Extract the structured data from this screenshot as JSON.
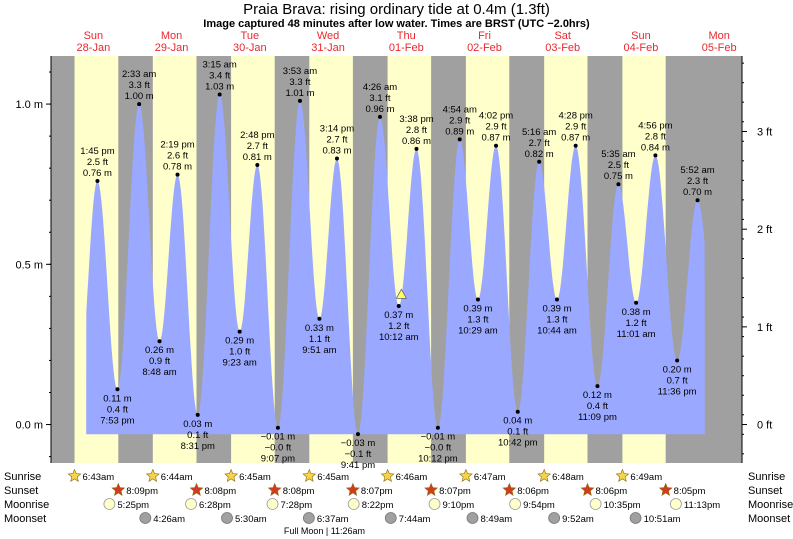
{
  "header": {
    "title": "Praia Brava: rising  ordinary tide at 0.4m (1.3ft)",
    "subtitle": "Image captured 48 minutes after low water. Times are BRST (UTC −2.0hrs)"
  },
  "colors": {
    "night": "#a0a0a0",
    "day": "#ffffcc",
    "tide": "#9aa8ff",
    "day_label": "#e8282d",
    "sunrise": "#f5d34a",
    "sunset": "#d23c1e",
    "moonrise": "#ffffcc",
    "moonset": "#a0a0a0"
  },
  "days": [
    {
      "dow": "Sun",
      "date": "28-Jan"
    },
    {
      "dow": "Mon",
      "date": "29-Jan"
    },
    {
      "dow": "Tue",
      "date": "30-Jan"
    },
    {
      "dow": "Wed",
      "date": "31-Jan"
    },
    {
      "dow": "Thu",
      "date": "01-Feb"
    },
    {
      "dow": "Fri",
      "date": "02-Feb"
    },
    {
      "dow": "Sat",
      "date": "03-Feb"
    },
    {
      "dow": "Sun",
      "date": "04-Feb"
    },
    {
      "dow": "Mon",
      "date": "05-Feb"
    }
  ],
  "chart_data": {
    "type": "area",
    "x_unit": "hours since 00:00 Sun 28-Jan (BRST)",
    "xlim": [
      -0.5,
      211.5
    ],
    "ylim": [
      -0.12,
      1.15
    ],
    "left_axis": {
      "unit": "m",
      "ticks": [
        {
          "value": 0.0,
          "label": "0.0 m"
        },
        {
          "value": 0.5,
          "label": "0.5 m"
        },
        {
          "value": 1.0,
          "label": "1.0 m"
        }
      ]
    },
    "right_axis": {
      "unit": "ft",
      "ticks": [
        {
          "value": 0,
          "label": "0 ft"
        },
        {
          "value": 1,
          "label": "1 ft"
        },
        {
          "value": 2,
          "label": "2 ft"
        },
        {
          "value": 3,
          "label": "3 ft"
        }
      ]
    },
    "current": {
      "label": "rising  ordinary tide at 0.4m (1.3ft)",
      "height_m": 0.4,
      "marker": "triangle"
    },
    "tides": [
      {
        "day": 0,
        "time": "1:45 pm",
        "m": 0.76,
        "ft": "2.5 ft",
        "m_label": "0.76 m",
        "type": "high"
      },
      {
        "day": 0,
        "time": "7:53 pm",
        "m": 0.11,
        "ft": "0.4 ft",
        "m_label": "0.11 m",
        "type": "low"
      },
      {
        "day": 1,
        "time": "2:33 am",
        "m": 1.0,
        "ft": "3.3 ft",
        "m_label": "1.00 m",
        "type": "high"
      },
      {
        "day": 1,
        "time": "8:48 am",
        "m": 0.26,
        "ft": "0.9 ft",
        "m_label": "0.26 m",
        "type": "low"
      },
      {
        "day": 1,
        "time": "2:19 pm",
        "m": 0.78,
        "ft": "2.6 ft",
        "m_label": "0.78 m",
        "type": "high"
      },
      {
        "day": 1,
        "time": "8:31 pm",
        "m": 0.03,
        "ft": "0.1 ft",
        "m_label": "0.03 m",
        "type": "low"
      },
      {
        "day": 2,
        "time": "3:15 am",
        "m": 1.03,
        "ft": "3.4 ft",
        "m_label": "1.03 m",
        "type": "high"
      },
      {
        "day": 2,
        "time": "9:23 am",
        "m": 0.29,
        "ft": "1.0 ft",
        "m_label": "0.29 m",
        "type": "low"
      },
      {
        "day": 2,
        "time": "2:48 pm",
        "m": 0.81,
        "ft": "2.7 ft",
        "m_label": "0.81 m",
        "type": "high"
      },
      {
        "day": 2,
        "time": "9:07 pm",
        "m": -0.01,
        "ft": "−0.0 ft",
        "m_label": "−0.01 m",
        "type": "low"
      },
      {
        "day": 3,
        "time": "3:53 am",
        "m": 1.01,
        "ft": "3.3 ft",
        "m_label": "1.01 m",
        "type": "high"
      },
      {
        "day": 3,
        "time": "9:51 am",
        "m": 0.33,
        "ft": "1.1 ft",
        "m_label": "0.33 m",
        "type": "low"
      },
      {
        "day": 3,
        "time": "3:14 pm",
        "m": 0.83,
        "ft": "2.7 ft",
        "m_label": "0.83 m",
        "type": "high"
      },
      {
        "day": 3,
        "time": "9:41 pm",
        "m": -0.03,
        "ft": "−0.1 ft",
        "m_label": "−0.03 m",
        "type": "low"
      },
      {
        "day": 4,
        "time": "4:26 am",
        "m": 0.96,
        "ft": "3.1 ft",
        "m_label": "0.96 m",
        "type": "high"
      },
      {
        "day": 4,
        "time": "10:12 am",
        "m": 0.37,
        "ft": "1.2 ft",
        "m_label": "0.37 m",
        "type": "low"
      },
      {
        "day": 4,
        "time": "3:38 pm",
        "m": 0.86,
        "ft": "2.8 ft",
        "m_label": "0.86 m",
        "type": "high"
      },
      {
        "day": 4,
        "time": "10:12 pm",
        "m": -0.01,
        "ft": "−0.0 ft",
        "m_label": "−0.01 m",
        "type": "low"
      },
      {
        "day": 5,
        "time": "4:54 am",
        "m": 0.89,
        "ft": "2.9 ft",
        "m_label": "0.89 m",
        "type": "high"
      },
      {
        "day": 5,
        "time": "10:29 am",
        "m": 0.39,
        "ft": "1.3 ft",
        "m_label": "0.39 m",
        "type": "low"
      },
      {
        "day": 5,
        "time": "4:02 pm",
        "m": 0.87,
        "ft": "2.9 ft",
        "m_label": "0.87 m",
        "type": "high"
      },
      {
        "day": 5,
        "time": "10:42 pm",
        "m": 0.04,
        "ft": "0.1 ft",
        "m_label": "0.04 m",
        "type": "low"
      },
      {
        "day": 6,
        "time": "5:16 am",
        "m": 0.82,
        "ft": "2.7 ft",
        "m_label": "0.82 m",
        "type": "high"
      },
      {
        "day": 6,
        "time": "10:44 am",
        "m": 0.39,
        "ft": "1.3 ft",
        "m_label": "0.39 m",
        "type": "low"
      },
      {
        "day": 6,
        "time": "4:28 pm",
        "m": 0.87,
        "ft": "2.9 ft",
        "m_label": "0.87 m",
        "type": "high"
      },
      {
        "day": 6,
        "time": "11:09 pm",
        "m": 0.12,
        "ft": "0.4 ft",
        "m_label": "0.12 m",
        "type": "low"
      },
      {
        "day": 7,
        "time": "5:35 am",
        "m": 0.75,
        "ft": "2.5 ft",
        "m_label": "0.75 m",
        "type": "high"
      },
      {
        "day": 7,
        "time": "11:01 am",
        "m": 0.38,
        "ft": "1.2 ft",
        "m_label": "0.38 m",
        "type": "low"
      },
      {
        "day": 7,
        "time": "4:56 pm",
        "m": 0.84,
        "ft": "2.8 ft",
        "m_label": "0.84 m",
        "type": "high"
      },
      {
        "day": 7,
        "time": "11:36 pm",
        "m": 0.2,
        "ft": "0.7 ft",
        "m_label": "0.20 m",
        "type": "low"
      },
      {
        "day": 8,
        "time": "5:52 am",
        "m": 0.7,
        "ft": "2.3 ft",
        "m_label": "0.70 m",
        "type": "high"
      }
    ]
  },
  "astro": {
    "labels": {
      "sunrise": "Sunrise",
      "sunset": "Sunset",
      "moonrise": "Moonrise",
      "moonset": "Moonset"
    },
    "sunrise": [
      "6:43am",
      "6:44am",
      "6:45am",
      "6:45am",
      "6:46am",
      "6:47am",
      "6:48am",
      "6:49am"
    ],
    "sunset": [
      "8:09pm",
      "8:08pm",
      "8:08pm",
      "8:07pm",
      "8:07pm",
      "8:06pm",
      "8:06pm",
      "8:05pm"
    ],
    "moonrise": [
      "5:25pm",
      "6:28pm",
      "7:28pm",
      "8:22pm",
      "9:10pm",
      "9:54pm",
      "10:35pm",
      "11:13pm"
    ],
    "moonset": [
      "4:26am",
      "5:30am",
      "6:37am",
      "7:44am",
      "8:49am",
      "9:52am",
      "10:51am"
    ],
    "moon_phase_note": "Full Moon | 11:26am"
  }
}
